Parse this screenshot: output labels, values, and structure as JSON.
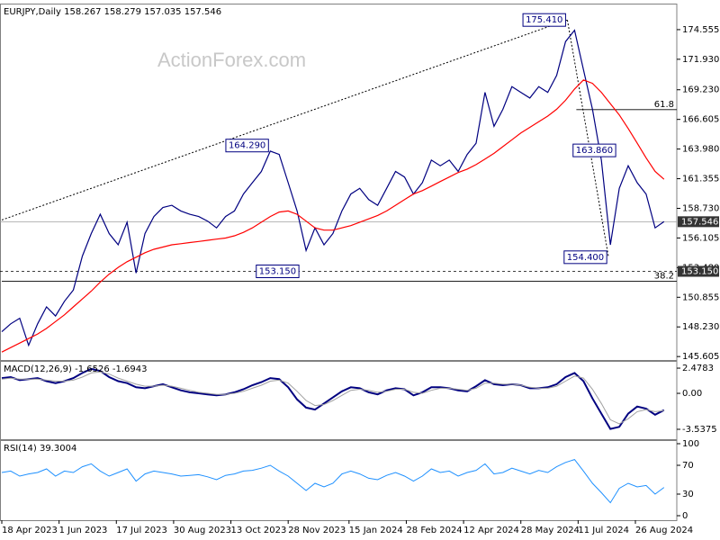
{
  "chart_data": {
    "type": "line",
    "watermark": "ActionForex.com",
    "x": [
      "2023-04-18",
      "2023-04-25",
      "2023-05-02",
      "2023-05-09",
      "2023-05-16",
      "2023-05-23",
      "2023-05-30",
      "2023-06-06",
      "2023-06-13",
      "2023-06-20",
      "2023-06-27",
      "2023-07-04",
      "2023-07-11",
      "2023-07-18",
      "2023-07-25",
      "2023-08-01",
      "2023-08-08",
      "2023-08-15",
      "2023-08-22",
      "2023-08-29",
      "2023-09-05",
      "2023-09-12",
      "2023-09-19",
      "2023-09-26",
      "2023-10-03",
      "2023-10-10",
      "2023-10-17",
      "2023-10-24",
      "2023-10-31",
      "2023-11-07",
      "2023-11-14",
      "2023-11-21",
      "2023-11-28",
      "2023-12-05",
      "2023-12-12",
      "2023-12-19",
      "2023-12-26",
      "2024-01-02",
      "2024-01-09",
      "2024-01-16",
      "2024-01-23",
      "2024-01-30",
      "2024-02-06",
      "2024-02-13",
      "2024-02-20",
      "2024-02-27",
      "2024-03-05",
      "2024-03-12",
      "2024-03-19",
      "2024-03-26",
      "2024-04-02",
      "2024-04-09",
      "2024-04-16",
      "2024-04-23",
      "2024-04-30",
      "2024-05-07",
      "2024-05-14",
      "2024-05-21",
      "2024-05-28",
      "2024-06-04",
      "2024-06-11",
      "2024-06-18",
      "2024-06-25",
      "2024-07-02",
      "2024-07-09",
      "2024-07-16",
      "2024-07-23",
      "2024-07-30",
      "2024-08-06",
      "2024-08-13",
      "2024-08-20",
      "2024-08-27",
      "2024-09-03",
      "2024-09-10",
      "2024-09-17"
    ],
    "xticks": [
      {
        "value": "2023-04-18",
        "label": "18 Apr 2023"
      },
      {
        "value": "2023-06-01",
        "label": "1 Jun 2023"
      },
      {
        "value": "2023-07-17",
        "label": "17 Jul 2023"
      },
      {
        "value": "2023-08-30",
        "label": "30 Aug 2023"
      },
      {
        "value": "2023-10-13",
        "label": "13 Oct 2023"
      },
      {
        "value": "2023-11-28",
        "label": "28 Nov 2023"
      },
      {
        "value": "2024-01-15",
        "label": "15 Jan 2024"
      },
      {
        "value": "2024-02-28",
        "label": "28 Feb 2024"
      },
      {
        "value": "2024-04-12",
        "label": "12 Apr 2024"
      },
      {
        "value": "2024-05-28",
        "label": "28 May 2024"
      },
      {
        "value": "2024-07-11",
        "label": "11 Jul 2024"
      },
      {
        "value": "2024-08-26",
        "label": "26 Aug 2024"
      }
    ],
    "panels": [
      {
        "title": "EURJPY,Daily  158.267 158.279 157.035 157.546",
        "ylim": [
          145.3,
          176.86
        ],
        "yticks": [
          174.555,
          {
            "value": 171.93,
            "label": "171.930"
          },
          {
            "value": 169.23,
            "label": "169.230"
          },
          166.605,
          {
            "value": 163.98,
            "label": "163.980"
          },
          161.355,
          {
            "value": 158.73,
            "label": "158.730"
          },
          156.105,
          {
            "value": 153.48,
            "label": "153.480"
          },
          150.855,
          {
            "value": 148.23,
            "label": "148.230"
          },
          145.605
        ],
        "series": [
          {
            "color": "#000080",
            "values": [
              147.8,
              148.5,
              149.0,
              146.6,
              148.5,
              150.0,
              149.2,
              150.5,
              151.5,
              154.5,
              156.5,
              158.2,
              156.5,
              155.5,
              157.5,
              153.0,
              156.5,
              158.0,
              158.8,
              159.0,
              158.5,
              158.2,
              158.0,
              157.6,
              157.0,
              158.0,
              158.5,
              160.0,
              161.0,
              162.0,
              163.8,
              163.5,
              161.0,
              158.5,
              155.0,
              157.0,
              155.5,
              156.5,
              158.5,
              160.0,
              160.5,
              159.5,
              159.0,
              160.5,
              162.0,
              161.5,
              160.0,
              161.0,
              163.0,
              162.5,
              163.0,
              162.0,
              163.5,
              164.5,
              169.0,
              166.0,
              167.5,
              169.5,
              169.0,
              168.5,
              169.5,
              169.0,
              170.5,
              173.5,
              174.5,
              171.0,
              167.5,
              163.0,
              155.5,
              160.5,
              162.5,
              161.0,
              160.0,
              157.0,
              157.546
            ]
          },
          {
            "color": "#ff0000",
            "values": [
              146.0,
              146.4,
              146.8,
              147.2,
              147.6,
              148.1,
              148.7,
              149.3,
              150.0,
              150.7,
              151.4,
              152.2,
              152.9,
              153.5,
              154.0,
              154.4,
              154.8,
              155.1,
              155.3,
              155.5,
              155.6,
              155.7,
              155.8,
              155.9,
              156.0,
              156.1,
              156.3,
              156.6,
              157.0,
              157.5,
              158.0,
              158.4,
              158.5,
              158.2,
              157.6,
              157.0,
              156.8,
              156.8,
              157.0,
              157.2,
              157.5,
              157.8,
              158.1,
              158.5,
              159.0,
              159.5,
              160.0,
              160.3,
              160.7,
              161.1,
              161.5,
              161.9,
              162.2,
              162.6,
              163.1,
              163.6,
              164.2,
              164.8,
              165.4,
              165.9,
              166.4,
              166.9,
              167.5,
              168.3,
              169.3,
              170.1,
              169.8,
              169.0,
              168.0,
              167.0,
              165.8,
              164.5,
              163.2,
              162.0,
              161.3
            ]
          }
        ],
        "current_price": 157.546,
        "support": {
          "value": 153.15,
          "label": "153.150"
        },
        "fib_levels": [
          {
            "ratio": 61.8,
            "value": 167.47,
            "from": "2024-07-10"
          },
          {
            "ratio": 38.2,
            "value": 152.28,
            "from": "2023-04-18"
          }
        ],
        "trendlines": [
          [
            {
              "date": "2023-04-18",
              "value": 157.7
            },
            {
              "date": "2024-07-03",
              "value": 175.41
            }
          ],
          [
            {
              "date": "2024-07-03",
              "value": 175.41
            },
            {
              "date": "2024-08-05",
              "value": 154.4
            }
          ]
        ],
        "annotations": [
          {
            "date": "2024-07-03",
            "value": 175.41,
            "label": "175.410"
          },
          {
            "date": "2023-11-14",
            "value": 164.29,
            "label": "164.290"
          },
          {
            "date": "2024-08-12",
            "value": 163.86,
            "label": "163.860"
          },
          {
            "date": "2024-08-05",
            "value": 154.4,
            "label": "154.400"
          },
          {
            "date": "2023-12-07",
            "value": 153.15,
            "label": "153.150"
          }
        ]
      },
      {
        "title": "MACD(12,26,9) -1.6526 -1.6943",
        "ylim": [
          -4.51,
          3.19
        ],
        "yticks": [
          2.4783,
          {
            "value": 0,
            "label": "0.00"
          },
          -3.5375
        ],
        "series": [
          {
            "color": "#000080",
            "width": 2,
            "values": [
              1.5,
              1.6,
              1.3,
              1.4,
              1.5,
              1.2,
              1.0,
              1.2,
              1.5,
              2.0,
              2.4,
              2.2,
              1.6,
              1.2,
              1.0,
              0.6,
              0.5,
              0.7,
              0.9,
              0.6,
              0.3,
              0.1,
              0.0,
              -0.1,
              -0.2,
              -0.1,
              0.1,
              0.4,
              0.8,
              1.1,
              1.5,
              1.4,
              0.6,
              -0.6,
              -1.4,
              -1.6,
              -1.0,
              -0.4,
              0.2,
              0.6,
              0.5,
              0.1,
              -0.1,
              0.3,
              0.5,
              0.4,
              -0.2,
              0.1,
              0.6,
              0.6,
              0.5,
              0.3,
              0.2,
              0.7,
              1.3,
              0.9,
              0.8,
              0.9,
              0.8,
              0.5,
              0.5,
              0.6,
              0.9,
              1.6,
              2.0,
              1.2,
              -0.5,
              -2.0,
              -3.5,
              -3.3,
              -2.0,
              -1.3,
              -1.5,
              -2.1,
              -1.6526
            ]
          },
          {
            "color": "#a0a0a0",
            "width": 1,
            "values": [
              1.4,
              1.5,
              1.4,
              1.4,
              1.4,
              1.3,
              1.2,
              1.2,
              1.3,
              1.6,
              2.0,
              2.1,
              1.9,
              1.5,
              1.2,
              0.9,
              0.7,
              0.7,
              0.8,
              0.7,
              0.5,
              0.3,
              0.1,
              0.0,
              -0.1,
              -0.1,
              0.0,
              0.2,
              0.5,
              0.8,
              1.2,
              1.3,
              1.0,
              0.2,
              -0.7,
              -1.2,
              -1.1,
              -0.7,
              -0.2,
              0.3,
              0.4,
              0.3,
              0.1,
              0.2,
              0.4,
              0.4,
              0.1,
              0.0,
              0.3,
              0.5,
              0.5,
              0.4,
              0.3,
              0.5,
              1.0,
              1.0,
              0.9,
              0.9,
              0.8,
              0.6,
              0.5,
              0.5,
              0.7,
              1.2,
              1.7,
              1.5,
              0.4,
              -1.0,
              -2.6,
              -3.0,
              -2.5,
              -1.8,
              -1.6,
              -1.8,
              -1.6943
            ]
          }
        ]
      },
      {
        "title": "RSI(14) 39.3004",
        "ylim": [
          -6.25,
          105
        ],
        "yticks": [
          100,
          70,
          30,
          0
        ],
        "series": [
          {
            "color": "#1e90ff",
            "width": 1,
            "values": [
              60,
              62,
              55,
              58,
              60,
              65,
              55,
              62,
              60,
              68,
              72,
              62,
              55,
              60,
              65,
              48,
              58,
              62,
              60,
              58,
              55,
              56,
              57,
              54,
              50,
              56,
              58,
              62,
              63,
              66,
              70,
              62,
              55,
              45,
              35,
              45,
              40,
              45,
              58,
              62,
              58,
              52,
              50,
              56,
              60,
              55,
              48,
              55,
              65,
              60,
              62,
              55,
              60,
              63,
              72,
              58,
              60,
              66,
              62,
              58,
              63,
              60,
              68,
              74,
              78,
              62,
              45,
              32,
              18,
              38,
              45,
              40,
              42,
              30,
              39.3004
            ]
          }
        ]
      }
    ]
  }
}
